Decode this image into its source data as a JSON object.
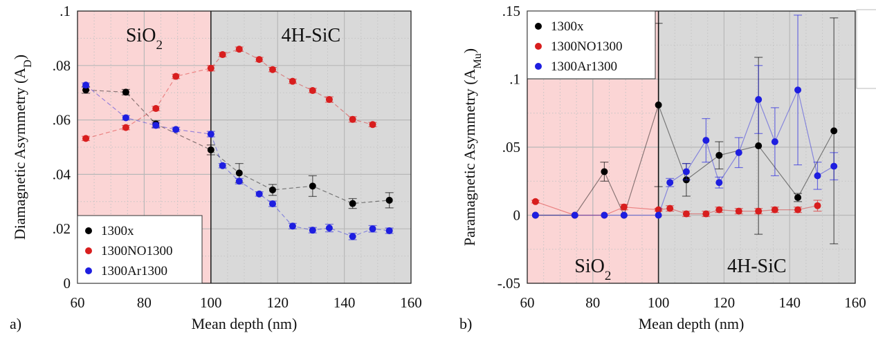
{
  "chart_data": [
    {
      "type": "scatter",
      "panel_label": "a)",
      "xlabel": "Mean depth (nm)",
      "ylabel": "Diamagnetic Asymmetry (A",
      "ylabel_sub": "D",
      "ylabel_close": ")",
      "xlim": [
        60,
        160
      ],
      "ylim": [
        0,
        0.1
      ],
      "xticks": [
        "60",
        "80",
        "100",
        "120",
        "140",
        "160"
      ],
      "yticks": [
        "0",
        ".02",
        ".04",
        ".06",
        ".08",
        ".1"
      ],
      "regions": [
        {
          "label": "SiO",
          "sub": "2",
          "from": 60,
          "to": 100,
          "color": "#fbd5d5"
        },
        {
          "label": "4H-SiC",
          "sub": "",
          "from": 100,
          "to": 160,
          "color": "#d9d9d9"
        }
      ],
      "legend_position": "bottom-left",
      "grid": true,
      "series": [
        {
          "name": "1300x",
          "color": "#000000",
          "x": [
            62.5,
            74.5,
            83.5,
            100,
            108.5,
            118.5,
            130.5,
            142.5,
            153.5
          ],
          "y": [
            0.071,
            0.0702,
            0.0585,
            0.049,
            0.0405,
            0.0343,
            0.0357,
            0.0293,
            0.0305
          ],
          "err": [
            0.0012,
            0.001,
            0.0012,
            0.0018,
            0.0035,
            0.002,
            0.0038,
            0.0018,
            0.0028
          ]
        },
        {
          "name": "1300NO1300",
          "color": "#d81e1e",
          "x": [
            62.5,
            74.5,
            83.5,
            89.5,
            100,
            103.5,
            108.5,
            114.5,
            118.5,
            124.5,
            130.5,
            135.5,
            142.5,
            148.5
          ],
          "y": [
            0.0532,
            0.0572,
            0.0642,
            0.076,
            0.079,
            0.084,
            0.086,
            0.0822,
            0.0785,
            0.0742,
            0.0708,
            0.0675,
            0.0602,
            0.0583
          ],
          "err": [
            0.0008,
            0.0008,
            0.0008,
            0.0008,
            0.001,
            0.0008,
            0.0008,
            0.0008,
            0.0008,
            0.0008,
            0.0008,
            0.001,
            0.001,
            0.0008
          ]
        },
        {
          "name": "1300Ar1300",
          "color": "#1e1ee0",
          "x": [
            62.5,
            74.5,
            83.5,
            89.5,
            100,
            103.5,
            108.5,
            114.5,
            118.5,
            124.5,
            130.5,
            135.5,
            142.5,
            148.5,
            153.5
          ],
          "y": [
            0.0728,
            0.0608,
            0.058,
            0.0565,
            0.0548,
            0.0432,
            0.0375,
            0.0328,
            0.0292,
            0.021,
            0.0195,
            0.0203,
            0.0172,
            0.02,
            0.0193
          ],
          "err": [
            0.0008,
            0.0008,
            0.001,
            0.0008,
            0.001,
            0.0008,
            0.001,
            0.0008,
            0.001,
            0.001,
            0.001,
            0.0014,
            0.0012,
            0.0012,
            0.001
          ]
        }
      ]
    },
    {
      "type": "scatter",
      "panel_label": "b)",
      "xlabel": "Mean depth (nm)",
      "ylabel": "Paramagnetic Asymmetry (A",
      "ylabel_sub": "Mu",
      "ylabel_close": ")",
      "xlim": [
        60,
        160
      ],
      "ylim": [
        -0.05,
        0.15
      ],
      "xticks": [
        "60",
        "80",
        "100",
        "120",
        "140",
        "160"
      ],
      "yticks": [
        "-.05",
        "0",
        ".05",
        ".1",
        ".15"
      ],
      "regions": [
        {
          "label": "SiO",
          "sub": "2",
          "from": 60,
          "to": 100,
          "color": "#fbd5d5"
        },
        {
          "label": "4H-SiC",
          "sub": "",
          "from": 100,
          "to": 160,
          "color": "#d9d9d9"
        }
      ],
      "legend_position": "top-left",
      "grid": true,
      "series": [
        {
          "name": "1300x",
          "color": "#000000",
          "x": [
            62.5,
            74.5,
            83.5,
            89.5,
            100,
            108.5,
            118.5,
            130.5,
            142.5,
            153.5
          ],
          "y": [
            0,
            0,
            0.032,
            0,
            0.081,
            0.026,
            0.044,
            0.051,
            0.013,
            0.062
          ],
          "err": [
            0,
            0,
            0.007,
            0,
            0.06,
            0.012,
            0.01,
            0.065,
            0.003,
            0.083
          ]
        },
        {
          "name": "1300NO1300",
          "color": "#d81e1e",
          "x": [
            62.5,
            74.5,
            83.5,
            89.5,
            100,
            103.5,
            108.5,
            114.5,
            118.5,
            124.5,
            130.5,
            135.5,
            142.5,
            148.5
          ],
          "y": [
            0.01,
            0,
            0,
            0.006,
            0.004,
            0.005,
            0.001,
            0.001,
            0.004,
            0.003,
            0.003,
            0.004,
            0.004,
            0.007
          ],
          "err": [
            0.001,
            0,
            0,
            0.002,
            0.001,
            0.002,
            0.002,
            0.002,
            0.002,
            0.002,
            0.002,
            0.002,
            0.002,
            0.004
          ]
        },
        {
          "name": "1300Ar1300",
          "color": "#1e1ee0",
          "x": [
            62.5,
            74.5,
            83.5,
            89.5,
            100,
            103.5,
            108.5,
            114.5,
            118.5,
            124.5,
            130.5,
            135.5,
            142.5,
            148.5,
            153.5
          ],
          "y": [
            0,
            0,
            0,
            0,
            0,
            0.024,
            0.032,
            0.055,
            0.024,
            0.046,
            0.085,
            0.054,
            0.092,
            0.029,
            0.036
          ],
          "err": [
            0,
            0,
            0,
            0,
            0,
            0.003,
            0.006,
            0.016,
            0.004,
            0.011,
            0.025,
            0.025,
            0.055,
            0.01,
            0.01
          ]
        }
      ]
    }
  ]
}
